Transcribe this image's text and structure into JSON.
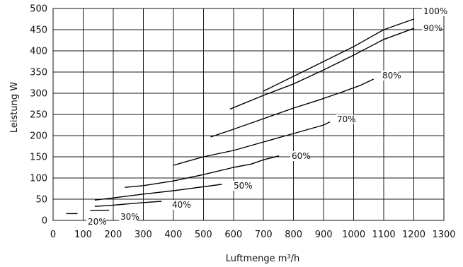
{
  "chart_data": {
    "type": "line",
    "title": "",
    "xlabel": "Luftmenge m³/h",
    "ylabel": "Leistung W",
    "xlim": [
      0,
      1300
    ],
    "ylim": [
      0,
      500
    ],
    "x_ticks": [
      0,
      100,
      200,
      300,
      400,
      500,
      600,
      700,
      800,
      900,
      1000,
      1100,
      1200,
      1300
    ],
    "y_ticks": [
      0,
      50,
      100,
      150,
      200,
      250,
      300,
      350,
      400,
      450,
      500
    ],
    "grid": true,
    "legend": "inline-labels",
    "series": [
      {
        "name": "100%",
        "x": [
          700,
          800,
          900,
          1000,
          1100,
          1200
        ],
        "y": [
          305,
          340,
          375,
          410,
          450,
          475
        ]
      },
      {
        "name": "90%",
        "x": [
          590,
          700,
          800,
          900,
          1000,
          1100,
          1200
        ],
        "y": [
          263,
          295,
          322,
          355,
          390,
          427,
          453
        ]
      },
      {
        "name": "80%",
        "x": [
          525,
          600,
          700,
          800,
          880,
          950,
          1020,
          1065
        ],
        "y": [
          197,
          215,
          240,
          265,
          283,
          300,
          318,
          333
        ]
      },
      {
        "name": "70%",
        "x": [
          400,
          500,
          600,
          700,
          800,
          900,
          920
        ],
        "y": [
          130,
          150,
          165,
          185,
          205,
          225,
          232
        ]
      },
      {
        "name": "60%",
        "x": [
          240,
          300,
          400,
          500,
          600,
          660,
          700,
          750
        ],
        "y": [
          78,
          82,
          93,
          108,
          125,
          133,
          143,
          152
        ]
      },
      {
        "name": "50%",
        "x": [
          140,
          200,
          300,
          400,
          560
        ],
        "y": [
          48,
          53,
          62,
          70,
          85
        ]
      },
      {
        "name": "40%",
        "x": [
          140,
          200,
          300,
          360
        ],
        "y": [
          33,
          36,
          42,
          45
        ]
      },
      {
        "name": "30%",
        "x": [
          125,
          185
        ],
        "y": [
          23,
          24
        ]
      },
      {
        "name": "20%",
        "x": [
          45,
          80
        ],
        "y": [
          16,
          16
        ]
      }
    ],
    "series_labels": [
      "100%",
      "90%",
      "80%",
      "70%",
      "60%",
      "50%",
      "40%",
      "30%",
      "20%"
    ]
  }
}
